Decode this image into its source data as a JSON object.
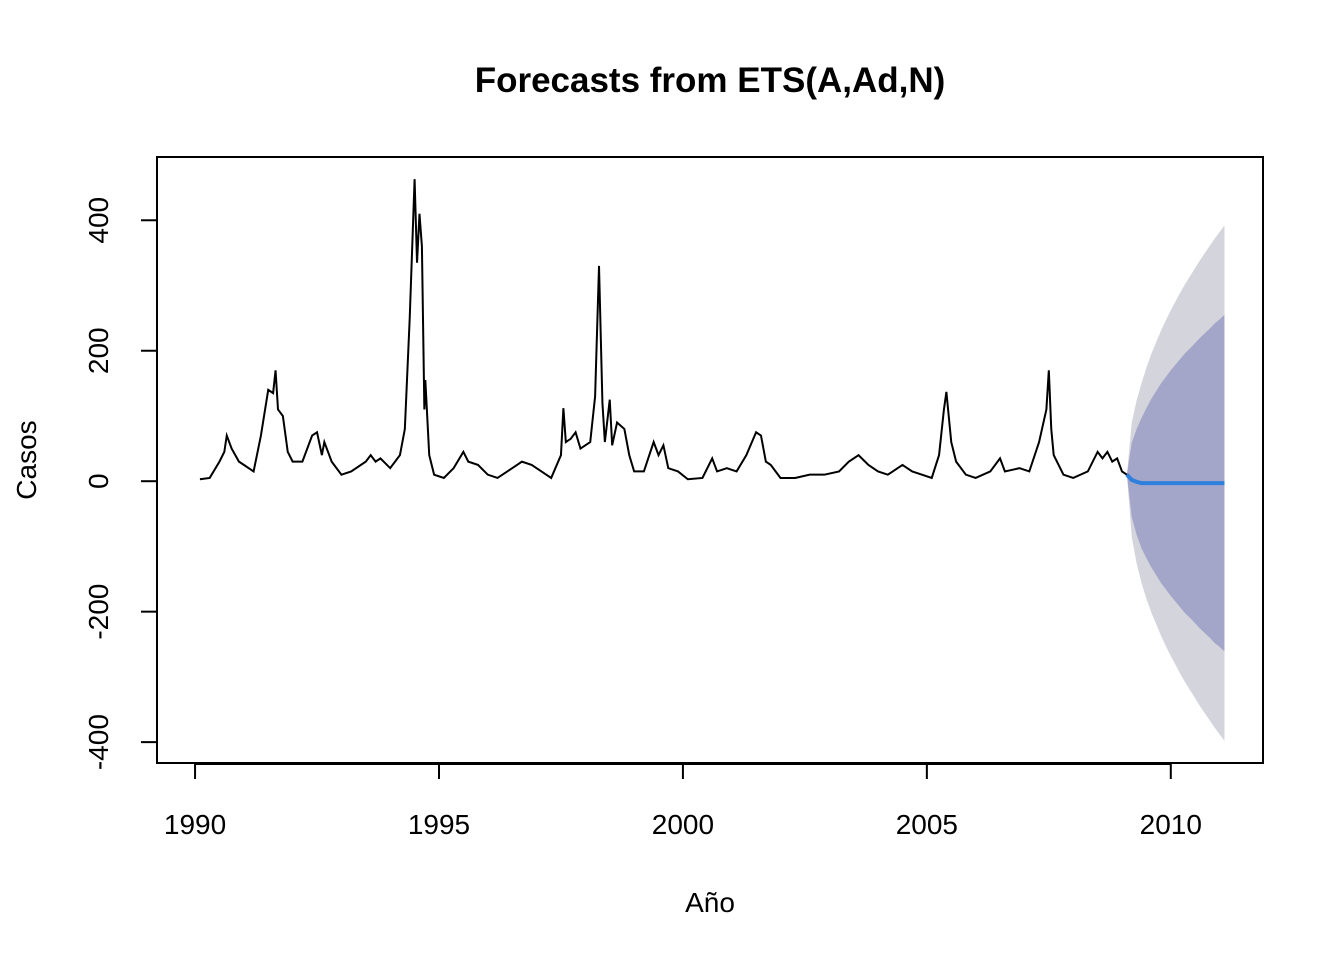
{
  "chart_data": {
    "type": "line",
    "title": "Forecasts from ETS(A,Ad,N)",
    "x_label": "Año",
    "y_label": "Casos",
    "x": [
      1990.1,
      1990.3,
      1990.5,
      1990.6,
      1990.65,
      1990.75,
      1990.9,
      1991.0,
      1991.2,
      1991.35,
      1991.5,
      1991.6,
      1991.65,
      1991.7,
      1991.8,
      1991.9,
      1992.0,
      1992.2,
      1992.4,
      1992.5,
      1992.6,
      1992.65,
      1992.8,
      1993.0,
      1993.2,
      1993.5,
      1993.6,
      1993.7,
      1993.8,
      1994.0,
      1994.2,
      1994.3,
      1994.4,
      1994.5,
      1994.55,
      1994.6,
      1994.65,
      1994.7,
      1994.72,
      1994.8,
      1994.9,
      1995.1,
      1995.3,
      1995.5,
      1995.6,
      1995.8,
      1996.0,
      1996.2,
      1996.5,
      1996.7,
      1996.9,
      1997.1,
      1997.3,
      1997.5,
      1997.55,
      1997.6,
      1997.7,
      1997.8,
      1997.9,
      1998.0,
      1998.1,
      1998.2,
      1998.28,
      1998.35,
      1998.4,
      1998.5,
      1998.55,
      1998.65,
      1998.8,
      1998.9,
      1999.0,
      1999.2,
      1999.4,
      1999.5,
      1999.6,
      1999.7,
      1999.9,
      2000.1,
      2000.4,
      2000.6,
      2000.7,
      2000.9,
      2001.1,
      2001.3,
      2001.5,
      2001.6,
      2001.7,
      2001.8,
      2002.0,
      2002.3,
      2002.6,
      2002.9,
      2003.2,
      2003.4,
      2003.6,
      2003.8,
      2004.0,
      2004.2,
      2004.5,
      2004.7,
      2004.9,
      2005.1,
      2005.25,
      2005.35,
      2005.4,
      2005.5,
      2005.6,
      2005.8,
      2006.0,
      2006.3,
      2006.5,
      2006.6,
      2006.9,
      2007.1,
      2007.3,
      2007.45,
      2007.5,
      2007.55,
      2007.6,
      2007.8,
      2008.0,
      2008.3,
      2008.5,
      2008.6,
      2008.7,
      2008.8,
      2008.9,
      2009.0,
      2009.1
    ],
    "values": [
      3,
      5,
      30,
      45,
      70,
      50,
      30,
      25,
      15,
      70,
      140,
      135,
      170,
      110,
      100,
      45,
      30,
      30,
      70,
      75,
      40,
      60,
      30,
      10,
      15,
      30,
      40,
      30,
      35,
      20,
      40,
      80,
      250,
      463,
      335,
      410,
      360,
      110,
      155,
      40,
      10,
      5,
      20,
      45,
      30,
      25,
      10,
      5,
      20,
      30,
      25,
      15,
      5,
      40,
      112,
      60,
      65,
      75,
      50,
      55,
      60,
      130,
      330,
      120,
      60,
      125,
      55,
      90,
      80,
      40,
      15,
      15,
      60,
      40,
      55,
      20,
      15,
      3,
      5,
      35,
      15,
      20,
      15,
      40,
      75,
      70,
      30,
      25,
      5,
      5,
      10,
      10,
      15,
      30,
      40,
      25,
      15,
      10,
      25,
      15,
      10,
      5,
      40,
      110,
      137,
      60,
      30,
      10,
      5,
      15,
      35,
      15,
      20,
      15,
      60,
      110,
      170,
      80,
      40,
      10,
      5,
      15,
      45,
      35,
      45,
      30,
      35,
      15,
      10
    ],
    "color": "#000000",
    "forecast": {
      "x": [
        2009.1,
        2009.2,
        2009.3,
        2009.4,
        2009.5,
        2009.6,
        2009.7,
        2009.8,
        2009.9,
        2010.0,
        2010.1,
        2010.2,
        2010.3,
        2010.4,
        2010.5,
        2010.6,
        2010.7,
        2010.8,
        2010.9,
        2011.0,
        2011.1
      ],
      "mean": [
        10,
        2,
        -1,
        -3,
        -3,
        -3,
        -3,
        -3,
        -3,
        -3,
        -3,
        -3,
        -3,
        -3,
        -3,
        -3,
        -3,
        -3,
        -3,
        -3,
        -3
      ],
      "lo80": [
        10,
        -55,
        -82,
        -103,
        -118,
        -132,
        -144,
        -156,
        -166,
        -176,
        -185,
        -194,
        -203,
        -210,
        -218,
        -226,
        -233,
        -240,
        -248,
        -254,
        -261
      ],
      "hi80": [
        10,
        59,
        80,
        97,
        112,
        126,
        138,
        150,
        160,
        170,
        179,
        188,
        197,
        204,
        212,
        220,
        227,
        234,
        242,
        248,
        255
      ],
      "lo95": [
        10,
        -86,
        -126,
        -156,
        -180,
        -201,
        -219,
        -237,
        -253,
        -268,
        -282,
        -296,
        -309,
        -321,
        -333,
        -345,
        -356,
        -367,
        -378,
        -388,
        -398
      ],
      "hi95": [
        10,
        90,
        124,
        150,
        174,
        195,
        213,
        231,
        247,
        262,
        276,
        290,
        303,
        315,
        327,
        339,
        350,
        361,
        372,
        382,
        392
      ],
      "mean_color": "#2f7fdc",
      "color80": "#a3a6c8",
      "color95": "#d4d4dc"
    },
    "xlim": [
      1989.22,
      2011.89
    ],
    "ylim": [
      -432,
      497
    ],
    "xticks": [
      1990,
      1995,
      2000,
      2005,
      2010
    ],
    "yticks": [
      -400,
      -200,
      0,
      200,
      400
    ]
  }
}
